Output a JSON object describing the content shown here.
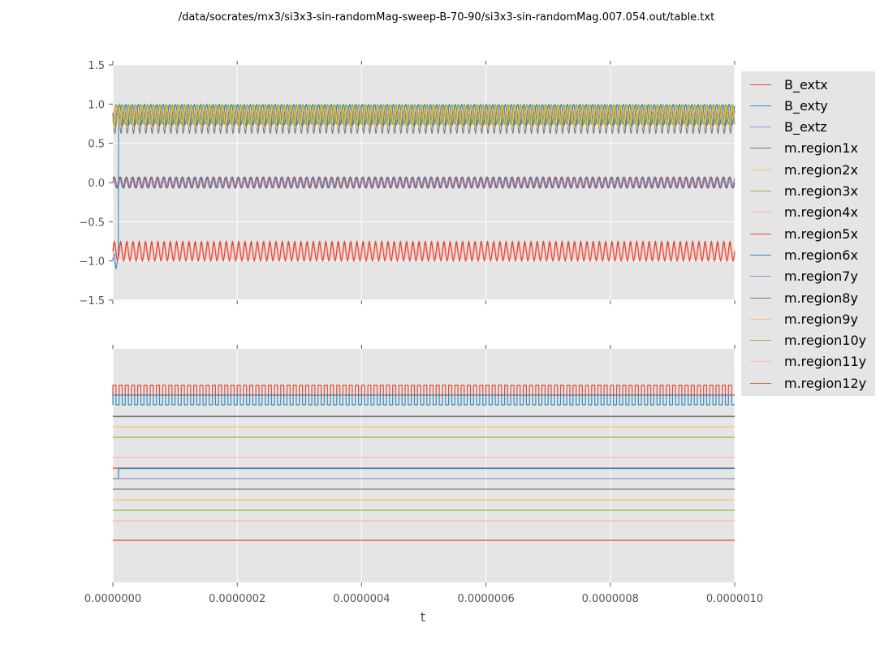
{
  "title": "/data/socrates/mx3/si3x3-sin-randomMag-sweep-B-70-90/si3x3-sin-randomMag.007.054.out/table.txt",
  "chart_data": [
    {
      "type": "line",
      "panel": "top",
      "xlabel": "",
      "ylabel": "",
      "xlim": [
        0,
        1e-06
      ],
      "ylim": [
        -1.5,
        1.5
      ],
      "yticks": [
        "1.5",
        "1.0",
        "0.5",
        "0.0",
        "−0.5",
        "−1.0",
        "−1.5"
      ],
      "ytick_values": [
        1.5,
        1.0,
        0.5,
        0.0,
        -0.5,
        -1.0,
        -1.5
      ],
      "grid": true,
      "background": "#e5e5e5",
      "cycles_over_range": 100,
      "series": [
        {
          "name": "B_extx",
          "color": "#E24A33",
          "form": "sine",
          "min": -0.07,
          "max": 0.07
        },
        {
          "name": "B_exty",
          "color": "#348ABD",
          "form": "sine",
          "min": -0.07,
          "max": 0.07
        },
        {
          "name": "B_extz",
          "color": "#988ED5",
          "form": "flat",
          "min": 0.0,
          "max": 0.0
        },
        {
          "name": "m.region1x",
          "color": "#777777",
          "form": "sine",
          "min": 0.63,
          "max": 0.98
        },
        {
          "name": "m.region2x",
          "color": "#FBC15E",
          "form": "sine",
          "min": 0.71,
          "max": 0.99
        },
        {
          "name": "m.region3x",
          "color": "#8EBA42",
          "form": "sine",
          "min": 0.74,
          "max": 1.0
        },
        {
          "name": "m.region4x",
          "color": "#FFB5B8",
          "form": "sine",
          "min": 0.76,
          "max": 0.98
        },
        {
          "name": "m.region5x",
          "color": "#E24A33",
          "form": "sine",
          "min": -1.0,
          "max": -0.75
        },
        {
          "name": "m.region6x",
          "color": "#348ABD",
          "form": "sine",
          "min": 0.74,
          "max": 1.0,
          "initial": -1.0
        },
        {
          "name": "m.region7y",
          "color": "#988ED5",
          "form": "flat",
          "min": 0.0,
          "max": 0.0
        },
        {
          "name": "m.region8y",
          "color": "#777777",
          "form": "sine",
          "min": 0.72,
          "max": 0.96
        },
        {
          "name": "m.region9y",
          "color": "#FBC15E",
          "form": "sine",
          "min": 0.72,
          "max": 0.98
        },
        {
          "name": "m.region10y",
          "color": "#8EBA42",
          "form": "sine",
          "min": 0.74,
          "max": 0.99
        },
        {
          "name": "m.region11y",
          "color": "#FFB5B8",
          "form": "sine",
          "min": -0.98,
          "max": -0.8
        },
        {
          "name": "m.region12y",
          "color": "#E24A33",
          "form": "sine",
          "min": -0.99,
          "max": -0.78
        }
      ]
    },
    {
      "type": "line",
      "panel": "bottom",
      "xlabel": "t",
      "xlim": [
        0,
        1e-06
      ],
      "xticks": [
        "0.0000000",
        "0.0000002",
        "0.0000004",
        "0.0000006",
        "0.0000008",
        "0.0000010"
      ],
      "xtick_values": [
        0,
        2e-07,
        4e-07,
        6e-07,
        8e-07,
        1e-06
      ],
      "yticks": [],
      "grid": true,
      "background": "#e5e5e5",
      "series_forms": {
        "B_extx": "square",
        "B_exty": "square",
        "m.region6x": "step"
      }
    }
  ],
  "legend": {
    "placement": "right",
    "items": [
      "B_extx",
      "B_exty",
      "B_extz",
      "m.region1x",
      "m.region2x",
      "m.region3x",
      "m.region4x",
      "m.region5x",
      "m.region6x",
      "m.region7y",
      "m.region8y",
      "m.region9y",
      "m.region10y",
      "m.region11y",
      "m.region12y"
    ]
  }
}
